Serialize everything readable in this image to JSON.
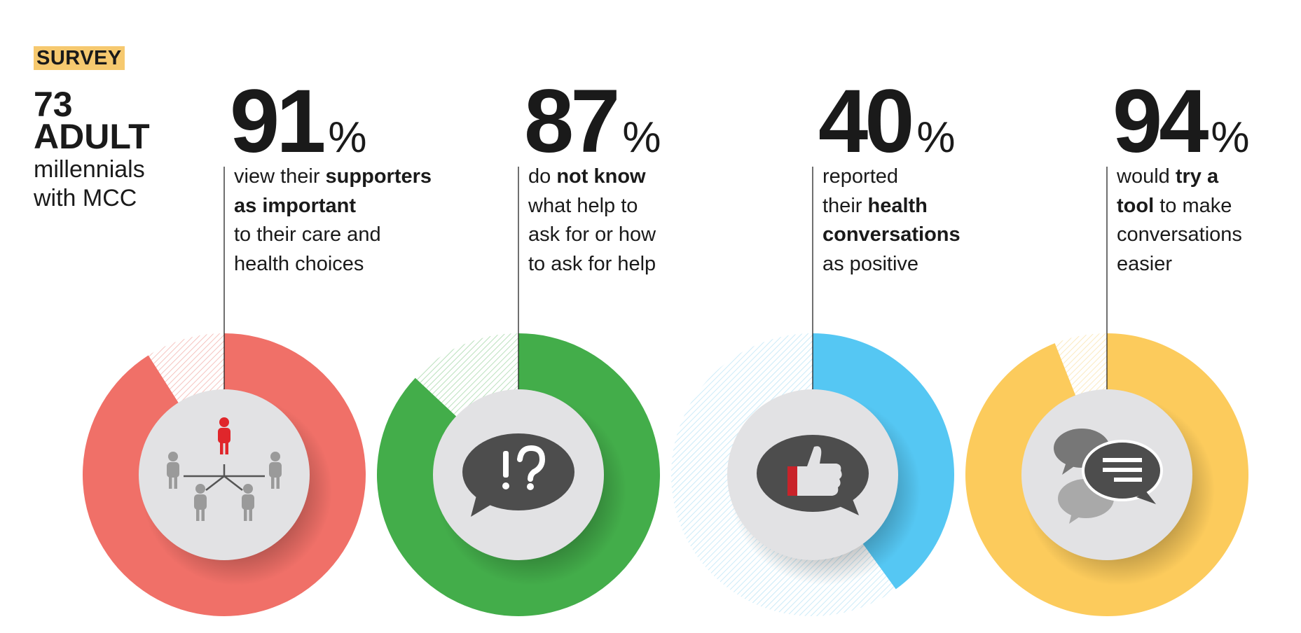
{
  "header": {
    "tag": "SURVEY",
    "count": "73",
    "adult": "ADULT",
    "line1": "millennials",
    "line2": "with MCC"
  },
  "chart_data": {
    "type": "pie",
    "variant": "donut",
    "items": [
      {
        "value": 91,
        "value_label": "91",
        "unit": "%",
        "color": "#f07068",
        "icon": "people-network-icon",
        "description": [
          [
            {
              "t": "view their ",
              "b": false
            },
            {
              "t": "supporters",
              "b": true
            }
          ],
          [
            {
              "t": "as important",
              "b": true
            }
          ],
          [
            {
              "t": "to their care and",
              "b": false
            }
          ],
          [
            {
              "t": "health choices",
              "b": false
            }
          ]
        ]
      },
      {
        "value": 87,
        "value_label": "87",
        "unit": "%",
        "color": "#43ad4a",
        "icon": "question-bubble-icon",
        "description": [
          [
            {
              "t": "do ",
              "b": false
            },
            {
              "t": "not know",
              "b": true
            }
          ],
          [
            {
              "t": "what help to",
              "b": false
            }
          ],
          [
            {
              "t": "ask for or how",
              "b": false
            }
          ],
          [
            {
              "t": "to ask for help",
              "b": false
            }
          ]
        ]
      },
      {
        "value": 40,
        "value_label": "40",
        "unit": "%",
        "color": "#55c7f3",
        "icon": "thumbs-up-bubble-icon",
        "description": [
          [
            {
              "t": "reported",
              "b": false
            }
          ],
          [
            {
              "t": "their ",
              "b": false
            },
            {
              "t": "health",
              "b": true
            }
          ],
          [
            {
              "t": "conversations",
              "b": true
            }
          ],
          [
            {
              "t": "as positive",
              "b": false
            }
          ]
        ]
      },
      {
        "value": 94,
        "value_label": "94",
        "unit": "%",
        "color": "#fccb5c",
        "icon": "chat-bubbles-icon",
        "description": [
          [
            {
              "t": "would ",
              "b": false
            },
            {
              "t": "try a",
              "b": true
            }
          ],
          [
            {
              "t": "tool",
              "b": true
            },
            {
              "t": " to make",
              "b": false
            }
          ],
          [
            {
              "t": "conversations",
              "b": false
            }
          ],
          [
            {
              "t": "easier",
              "b": false
            }
          ]
        ]
      }
    ]
  }
}
